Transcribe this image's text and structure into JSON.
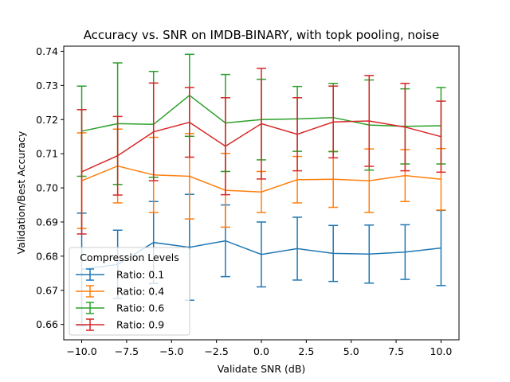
{
  "chart_data": {
    "type": "line",
    "title": "Accuracy vs. SNR on IMDB-BINARY, with topk pooling, noise",
    "xlabel": "Validate SNR (dB)",
    "ylabel": "Validation/Best Accuracy",
    "xlim": [
      -11.0,
      11.0
    ],
    "ylim": [
      0.6555,
      0.7415
    ],
    "xticks": [
      -10.0,
      -7.5,
      -5.0,
      -2.5,
      0.0,
      2.5,
      5.0,
      7.5,
      10.0
    ],
    "xtick_labels": [
      "−10.0",
      "−7.5",
      "−5.0",
      "−2.5",
      "0.0",
      "2.5",
      "5.0",
      "7.5",
      "10.0"
    ],
    "yticks": [
      0.66,
      0.67,
      0.68,
      0.69,
      0.7,
      0.71,
      0.72,
      0.73,
      0.74
    ],
    "ytick_labels": [
      "0.66",
      "0.67",
      "0.68",
      "0.69",
      "0.70",
      "0.71",
      "0.72",
      "0.73",
      "0.74"
    ],
    "grid": false,
    "x": [
      -10,
      -8,
      -6,
      -4,
      -2,
      0,
      2,
      4,
      6,
      8,
      10
    ],
    "legend": {
      "title": "Compression Levels",
      "placement": "lower-left"
    },
    "series": [
      {
        "name": "Ratio: 0.1",
        "color": "#1f77b4",
        "values": [
          0.6761,
          0.6776,
          0.684,
          0.6826,
          0.6845,
          0.6805,
          0.6822,
          0.6808,
          0.6806,
          0.6812,
          0.6824
        ],
        "errors": [
          0.0165,
          0.01,
          0.012,
          0.0155,
          0.0105,
          0.0095,
          0.0092,
          0.0082,
          0.0085,
          0.008,
          0.011
        ]
      },
      {
        "name": "Ratio: 0.4",
        "color": "#ff7f0e",
        "values": [
          0.7021,
          0.7064,
          0.7038,
          0.7034,
          0.6993,
          0.6988,
          0.7024,
          0.7025,
          0.7021,
          0.7036,
          0.7025
        ],
        "errors": [
          0.014,
          0.0108,
          0.011,
          0.0125,
          0.0108,
          0.006,
          0.0068,
          0.0082,
          0.0093,
          0.0076,
          0.009
        ]
      },
      {
        "name": "Ratio: 0.6",
        "color": "#2ca02c",
        "values": [
          0.7166,
          0.7188,
          0.7186,
          0.7271,
          0.719,
          0.72,
          0.7202,
          0.7206,
          0.7184,
          0.718,
          0.7182
        ],
        "errors": [
          0.0132,
          0.0178,
          0.0155,
          0.012,
          0.0142,
          0.0118,
          0.0095,
          0.01,
          0.0132,
          0.011,
          0.0112
        ]
      },
      {
        "name": "Ratio: 0.9",
        "color": "#d62728",
        "values": [
          0.7047,
          0.7094,
          0.7164,
          0.7192,
          0.7122,
          0.7188,
          0.7157,
          0.7193,
          0.7196,
          0.7178,
          0.715
        ],
        "errors": [
          0.0182,
          0.0115,
          0.0143,
          0.0102,
          0.0142,
          0.0162,
          0.0107,
          0.0105,
          0.0133,
          0.0128,
          0.0104
        ]
      }
    ]
  }
}
